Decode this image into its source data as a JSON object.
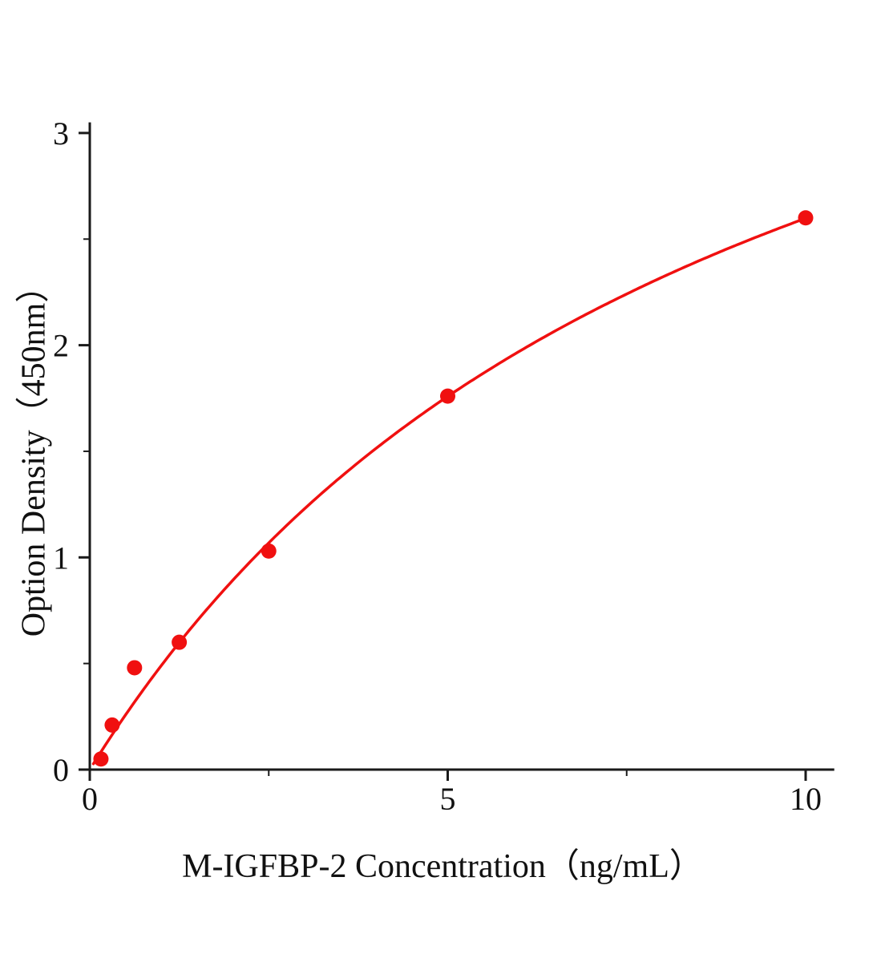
{
  "chart_data": {
    "type": "scatter",
    "title": "",
    "xlabel": "M-IGFBP-2 Concentration（ng/mL）",
    "ylabel": "Option Density（450nm）",
    "x": [
      0.156,
      0.3125,
      0.625,
      1.25,
      2.5,
      5,
      10
    ],
    "y": [
      0.05,
      0.21,
      0.48,
      0.6,
      1.03,
      1.76,
      2.6
    ],
    "xlim": [
      0,
      10.4
    ],
    "ylim": [
      0,
      3.05
    ],
    "xticks": [
      0,
      5,
      10
    ],
    "yticks": [
      0,
      1,
      2,
      3
    ],
    "x_minor_ticks": [
      2.5,
      7.5
    ],
    "y_minor_ticks": [
      0.5,
      1.5,
      2.5
    ],
    "grid": false,
    "legend": "none",
    "fit": {
      "type": "michaelis_menten",
      "vmax": 4.97,
      "km": 9.13,
      "x_start": 0.05,
      "x_end": 10
    },
    "colors": {
      "points": "#f01010",
      "line": "#f01010",
      "axis": "#1a1a1a",
      "background": "#ffffff"
    }
  }
}
